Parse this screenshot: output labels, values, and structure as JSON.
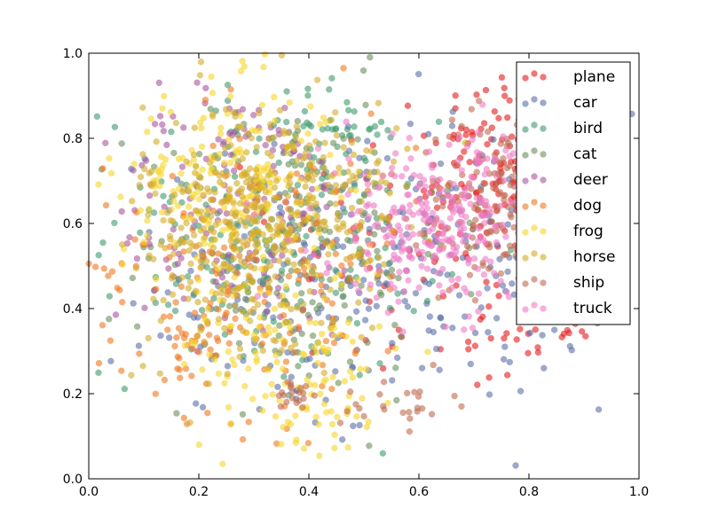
{
  "chart_data": {
    "type": "scatter",
    "title": "",
    "xlabel": "",
    "ylabel": "",
    "xlim": [
      0.0,
      1.0
    ],
    "ylim": [
      0.0,
      1.0
    ],
    "xticks": [
      "0.0",
      "0.2",
      "0.4",
      "0.6",
      "0.8",
      "1.0"
    ],
    "yticks": [
      "0.0",
      "0.2",
      "0.4",
      "0.6",
      "0.8",
      "1.0"
    ],
    "grid": false,
    "legend_position": "top-right",
    "marker_alpha": 0.6,
    "series": [
      {
        "name": "plane",
        "color": "#e41a1c",
        "clusters": [
          [
            0.76,
            0.74,
            0.07,
            0.12,
            120
          ],
          [
            0.62,
            0.55,
            0.14,
            0.18,
            90
          ],
          [
            0.8,
            0.36,
            0.06,
            0.06,
            30
          ]
        ]
      },
      {
        "name": "car",
        "color": "#5a6fa8",
        "clusters": [
          [
            0.62,
            0.52,
            0.17,
            0.17,
            210
          ],
          [
            0.35,
            0.45,
            0.15,
            0.17,
            100
          ]
        ]
      },
      {
        "name": "bird",
        "color": "#3f9a6e",
        "clusters": [
          [
            0.33,
            0.57,
            0.15,
            0.17,
            200
          ],
          [
            0.45,
            0.82,
            0.05,
            0.04,
            30
          ]
        ]
      },
      {
        "name": "cat",
        "color": "#6a8f5a",
        "clusters": [
          [
            0.38,
            0.55,
            0.14,
            0.18,
            170
          ]
        ]
      },
      {
        "name": "deer",
        "color": "#a9569c",
        "clusters": [
          [
            0.27,
            0.62,
            0.12,
            0.15,
            170
          ]
        ]
      },
      {
        "name": "dog",
        "color": "#f0781e",
        "clusters": [
          [
            0.3,
            0.5,
            0.15,
            0.18,
            170
          ],
          [
            0.19,
            0.33,
            0.03,
            0.04,
            30
          ]
        ]
      },
      {
        "name": "frog",
        "color": "#f7d52a",
        "clusters": [
          [
            0.26,
            0.68,
            0.1,
            0.12,
            230
          ],
          [
            0.36,
            0.3,
            0.1,
            0.1,
            110
          ],
          [
            0.42,
            0.15,
            0.04,
            0.04,
            30
          ]
        ]
      },
      {
        "name": "horse",
        "color": "#d4ac28",
        "clusters": [
          [
            0.34,
            0.65,
            0.12,
            0.12,
            330
          ],
          [
            0.25,
            0.45,
            0.1,
            0.12,
            90
          ]
        ]
      },
      {
        "name": "ship",
        "color": "#bf6b50",
        "clusters": [
          [
            0.74,
            0.65,
            0.07,
            0.1,
            150
          ],
          [
            0.38,
            0.2,
            0.02,
            0.02,
            20
          ],
          [
            0.56,
            0.18,
            0.05,
            0.03,
            25
          ]
        ]
      },
      {
        "name": "truck",
        "color": "#ef7cc4",
        "clusters": [
          [
            0.64,
            0.6,
            0.11,
            0.1,
            300
          ]
        ]
      }
    ]
  }
}
